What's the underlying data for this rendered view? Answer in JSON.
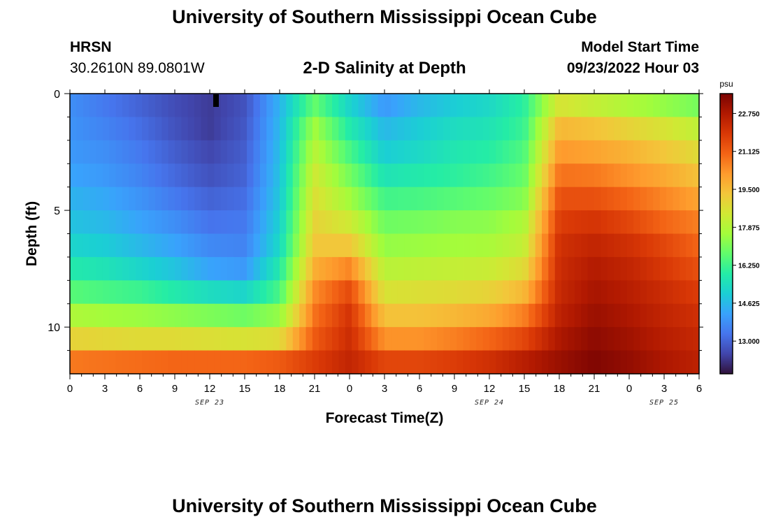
{
  "page": {
    "title_top": "University of Southern Mississippi Ocean Cube",
    "title_bottom": "University of Southern Mississippi Ocean Cube",
    "station_name": "HRSN",
    "station_coords": "30.2610N  89.0801W",
    "plot_title": "2-D Salinity at Depth",
    "model_start_label": "Model Start Time",
    "model_start_value": "09/23/2022 Hour 03"
  },
  "chart_data": {
    "type": "heatmap",
    "title": "2-D Salinity at Depth",
    "xlabel": "Forecast Time(Z)",
    "ylabel": "Depth (ft)",
    "xlim": [
      0,
      54
    ],
    "ylim": [
      0,
      12
    ],
    "x_ticks": [
      {
        "value": 0,
        "label": "0"
      },
      {
        "value": 3,
        "label": "3"
      },
      {
        "value": 6,
        "label": "6"
      },
      {
        "value": 9,
        "label": "9"
      },
      {
        "value": 12,
        "label": "12"
      },
      {
        "value": 15,
        "label": "15"
      },
      {
        "value": 18,
        "label": "18"
      },
      {
        "value": 21,
        "label": "21"
      },
      {
        "value": 24,
        "label": "0"
      },
      {
        "value": 27,
        "label": "3"
      },
      {
        "value": 30,
        "label": "6"
      },
      {
        "value": 33,
        "label": "9"
      },
      {
        "value": 36,
        "label": "12"
      },
      {
        "value": 39,
        "label": "15"
      },
      {
        "value": 42,
        "label": "18"
      },
      {
        "value": 45,
        "label": "21"
      },
      {
        "value": 48,
        "label": "0"
      },
      {
        "value": 51,
        "label": "3"
      },
      {
        "value": 54,
        "label": "6"
      }
    ],
    "date_labels": [
      {
        "value": 12,
        "label": "SEP 23"
      },
      {
        "value": 36,
        "label": "SEP 24"
      },
      {
        "value": 51,
        "label": "SEP 25"
      }
    ],
    "y_ticks": [
      {
        "value": 0,
        "label": "0"
      },
      {
        "value": 5,
        "label": "5"
      },
      {
        "value": 10,
        "label": "10"
      }
    ],
    "colorbar": {
      "unit": "psu",
      "min": 11.6,
      "max": 23.6,
      "ticks": [
        "13.000",
        "14.625",
        "16.250",
        "17.875",
        "19.500",
        "21.125",
        "22.750"
      ],
      "colors": [
        "#30123b",
        "#4145ab",
        "#4675ed",
        "#39a2fc",
        "#1bcfd4",
        "#24eca6",
        "#61fc6c",
        "#a4fc3b",
        "#d1e834",
        "#f3c63a",
        "#fe9b2d",
        "#f36315",
        "#d93806",
        "#b11901",
        "#7a0402"
      ]
    },
    "grid": false,
    "x_timestamps_hours": [
      0,
      3,
      6,
      9,
      12,
      15,
      18,
      21,
      24,
      27,
      30,
      33,
      36,
      39,
      42,
      45,
      48,
      51,
      54
    ],
    "depth_layers_ft": [
      0.5,
      1.5,
      2.5,
      3.5,
      4.5,
      5.5,
      6.5,
      7.5,
      8.5,
      9.5,
      10.5,
      11.5
    ],
    "salinity_psu": [
      [
        13.8,
        13.4,
        13.0,
        12.6,
        12.3,
        12.7,
        14.5,
        16.8,
        15.2,
        14.0,
        14.6,
        15.0,
        15.3,
        16.0,
        18.6,
        18.2,
        17.8,
        17.4,
        17.0
      ],
      [
        13.9,
        13.6,
        13.2,
        12.7,
        12.3,
        12.8,
        14.6,
        17.6,
        15.8,
        14.6,
        15.0,
        15.4,
        15.6,
        16.2,
        19.6,
        19.4,
        19.0,
        18.6,
        18.1
      ],
      [
        14.0,
        13.8,
        13.4,
        12.9,
        12.5,
        12.9,
        14.7,
        18.0,
        16.4,
        15.0,
        15.3,
        15.7,
        15.9,
        16.5,
        20.2,
        20.0,
        19.7,
        19.3,
        18.8
      ],
      [
        14.2,
        14.0,
        13.6,
        13.1,
        12.7,
        13.0,
        14.8,
        18.4,
        17.0,
        15.6,
        15.8,
        16.0,
        16.3,
        16.8,
        20.8,
        20.7,
        20.3,
        19.9,
        19.4
      ],
      [
        14.5,
        14.3,
        13.9,
        13.4,
        13.0,
        13.2,
        14.9,
        18.7,
        17.6,
        16.3,
        16.4,
        16.6,
        16.8,
        17.2,
        21.4,
        21.4,
        21.0,
        20.5,
        20.0
      ],
      [
        14.8,
        14.6,
        14.2,
        13.8,
        13.3,
        13.4,
        15.1,
        19.0,
        18.4,
        16.9,
        17.0,
        17.2,
        17.3,
        17.8,
        21.8,
        22.0,
        21.6,
        21.0,
        20.6
      ],
      [
        15.2,
        15.0,
        14.6,
        14.2,
        13.7,
        13.6,
        15.3,
        19.3,
        19.3,
        17.4,
        17.5,
        17.6,
        17.7,
        18.2,
        22.1,
        22.4,
        22.1,
        21.6,
        21.0
      ],
      [
        15.8,
        15.6,
        15.2,
        14.8,
        14.2,
        14.0,
        15.8,
        19.8,
        20.5,
        18.0,
        18.1,
        18.2,
        18.3,
        18.8,
        22.2,
        22.7,
        22.4,
        21.9,
        21.4
      ],
      [
        16.6,
        16.4,
        16.2,
        15.8,
        15.4,
        15.2,
        16.4,
        20.4,
        21.5,
        18.6,
        18.7,
        18.8,
        19.0,
        19.6,
        22.3,
        22.9,
        22.6,
        22.2,
        21.8
      ],
      [
        17.8,
        17.6,
        17.5,
        17.3,
        17.1,
        16.9,
        17.4,
        20.8,
        22.0,
        19.4,
        19.4,
        19.6,
        19.9,
        20.6,
        22.5,
        23.1,
        22.8,
        22.4,
        22.1
      ],
      [
        19.0,
        18.9,
        18.8,
        18.8,
        18.7,
        18.6,
        18.8,
        21.2,
        22.2,
        20.3,
        20.3,
        20.6,
        21.0,
        21.6,
        22.8,
        23.3,
        23.0,
        22.6,
        22.3
      ],
      [
        20.7,
        20.8,
        20.9,
        21.0,
        21.0,
        21.0,
        21.2,
        21.8,
        22.4,
        21.6,
        21.6,
        21.8,
        22.1,
        22.6,
        23.1,
        23.5,
        23.2,
        22.8,
        22.5
      ]
    ]
  }
}
